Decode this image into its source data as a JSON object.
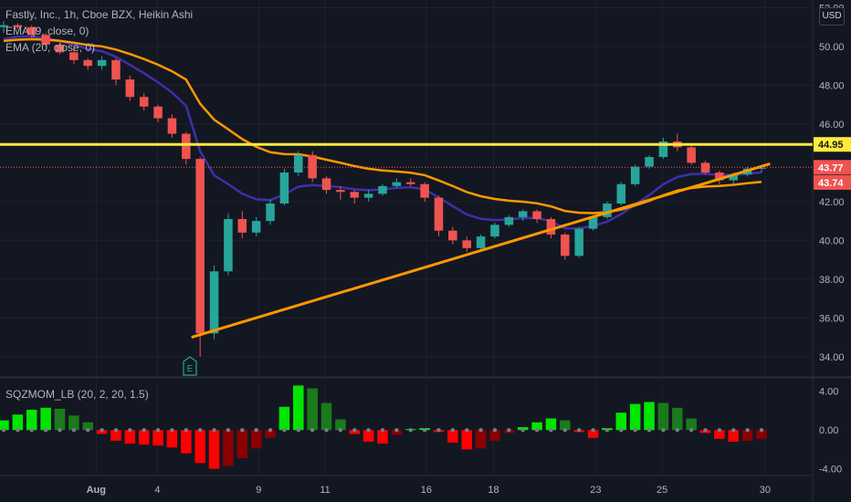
{
  "header": {
    "symbol_line": "Fastly, Inc., 1h, Cboe BZX, Heikin Ashi",
    "ema1": "EMA (9, close, 0)",
    "ema2": "EMA (20, close, 0)",
    "currency": "USD"
  },
  "indicator": {
    "title": "SQZMOM_LB (20, 2, 20, 1.5)"
  },
  "earnings_marker": "E",
  "colors": {
    "background": "#131722",
    "up_candle": "#26a69a",
    "down_candle": "#ef5350",
    "ema_fast": "#3f2fa8",
    "ema_slow": "#ff9800",
    "trendline": "#ff9800",
    "horizontal_level": "#ffeb3b",
    "mom_bright_green": "#00e600",
    "mom_dark_green": "#1b7a1b",
    "mom_bright_red": "#ff0000",
    "mom_dark_red": "#8b0000"
  },
  "chart_data": {
    "type": "candlestick",
    "x_ticks": [
      "Aug",
      "4",
      "9",
      "11",
      "16",
      "18",
      "23",
      "25",
      "30"
    ],
    "y_ticks": [
      "34.00",
      "36.00",
      "38.00",
      "40.00",
      "42.00",
      "46.00",
      "48.00",
      "50.00",
      "52.00"
    ],
    "ylim": [
      33,
      52.4
    ],
    "price_labels": {
      "horizontal_level": "44.95",
      "last_price": "43.77",
      "last_close": "43.74"
    },
    "horizontal_level": 44.95,
    "trendline": {
      "x": [
        0.225,
        0.905
      ],
      "y": [
        35.0,
        43.95
      ]
    },
    "ohlc_heikin_ashi": [
      [
        51.0,
        51.3,
        50.7,
        51.1
      ],
      [
        51.1,
        51.2,
        50.9,
        51.0
      ],
      [
        51.0,
        51.1,
        50.4,
        50.6
      ],
      [
        50.6,
        50.7,
        50.0,
        50.1
      ],
      [
        50.1,
        50.3,
        49.6,
        49.7
      ],
      [
        49.7,
        49.9,
        49.1,
        49.3
      ],
      [
        49.3,
        49.4,
        48.8,
        49.0
      ],
      [
        49.0,
        49.5,
        48.8,
        49.3
      ],
      [
        49.3,
        49.4,
        48.0,
        48.3
      ],
      [
        48.3,
        48.5,
        47.2,
        47.4
      ],
      [
        47.4,
        47.6,
        46.7,
        46.9
      ],
      [
        46.9,
        47.0,
        46.1,
        46.3
      ],
      [
        46.3,
        46.5,
        45.3,
        45.5
      ],
      [
        45.5,
        45.6,
        43.9,
        44.2
      ],
      [
        44.2,
        44.3,
        34.0,
        35.2
      ],
      [
        35.2,
        38.7,
        34.9,
        38.4
      ],
      [
        38.4,
        41.4,
        38.2,
        41.1
      ],
      [
        41.1,
        41.5,
        40.1,
        40.4
      ],
      [
        40.4,
        41.2,
        40.2,
        41.0
      ],
      [
        41.0,
        42.1,
        40.8,
        41.9
      ],
      [
        41.9,
        43.7,
        41.8,
        43.5
      ],
      [
        43.5,
        44.6,
        43.3,
        44.4
      ],
      [
        44.4,
        44.6,
        43.0,
        43.2
      ],
      [
        43.2,
        43.3,
        42.4,
        42.6
      ],
      [
        42.6,
        42.8,
        42.1,
        42.5
      ],
      [
        42.5,
        42.6,
        41.9,
        42.2
      ],
      [
        42.2,
        42.6,
        42.0,
        42.4
      ],
      [
        42.4,
        42.9,
        42.3,
        42.8
      ],
      [
        42.8,
        43.2,
        42.7,
        43.0
      ],
      [
        43.0,
        43.2,
        42.8,
        42.9
      ],
      [
        42.9,
        43.0,
        42.0,
        42.2
      ],
      [
        42.2,
        42.3,
        40.2,
        40.5
      ],
      [
        40.5,
        40.7,
        39.8,
        40.0
      ],
      [
        40.0,
        40.2,
        39.4,
        39.6
      ],
      [
        39.6,
        40.3,
        39.5,
        40.2
      ],
      [
        40.2,
        40.9,
        40.1,
        40.8
      ],
      [
        40.8,
        41.3,
        40.7,
        41.2
      ],
      [
        41.2,
        41.6,
        41.0,
        41.5
      ],
      [
        41.5,
        41.6,
        40.9,
        41.1
      ],
      [
        41.1,
        41.2,
        40.1,
        40.3
      ],
      [
        40.3,
        40.4,
        39.0,
        39.2
      ],
      [
        39.2,
        40.7,
        39.1,
        40.6
      ],
      [
        40.6,
        41.3,
        40.5,
        41.2
      ],
      [
        41.2,
        42.0,
        41.1,
        41.9
      ],
      [
        41.9,
        43.0,
        41.8,
        42.9
      ],
      [
        42.9,
        43.9,
        42.8,
        43.8
      ],
      [
        43.8,
        44.4,
        43.7,
        44.3
      ],
      [
        44.3,
        45.3,
        44.2,
        45.1
      ],
      [
        45.1,
        45.5,
        44.6,
        44.8
      ],
      [
        44.8,
        44.9,
        43.9,
        44.0
      ],
      [
        44.0,
        44.1,
        43.4,
        43.5
      ],
      [
        43.5,
        43.6,
        42.9,
        43.1
      ],
      [
        43.1,
        43.5,
        42.9,
        43.4
      ],
      [
        43.4,
        43.8,
        43.3,
        43.7
      ],
      [
        43.7,
        43.8,
        43.5,
        43.74
      ]
    ],
    "momentum": {
      "ylim": [
        -4.6,
        5.2
      ],
      "y_ticks": [
        "4.00",
        "0.00",
        "-4.00"
      ],
      "values": [
        1.0,
        1.6,
        2.1,
        2.3,
        2.2,
        1.5,
        0.8,
        -0.4,
        -1.1,
        -1.4,
        -1.5,
        -1.6,
        -1.8,
        -2.4,
        -3.4,
        -4.0,
        -3.7,
        -2.9,
        -1.9,
        -0.8,
        2.4,
        4.6,
        4.3,
        2.8,
        1.1,
        -0.4,
        -1.2,
        -1.4,
        -0.5,
        0.1,
        0.2,
        -0.2,
        -1.3,
        -2.0,
        -1.9,
        -1.1,
        -0.3,
        0.3,
        0.8,
        1.2,
        1.0,
        -0.2,
        -0.8,
        0.2,
        1.8,
        2.7,
        2.9,
        2.8,
        2.3,
        1.2,
        -0.3,
        -0.9,
        -1.2,
        -1.1,
        -0.9
      ]
    }
  }
}
